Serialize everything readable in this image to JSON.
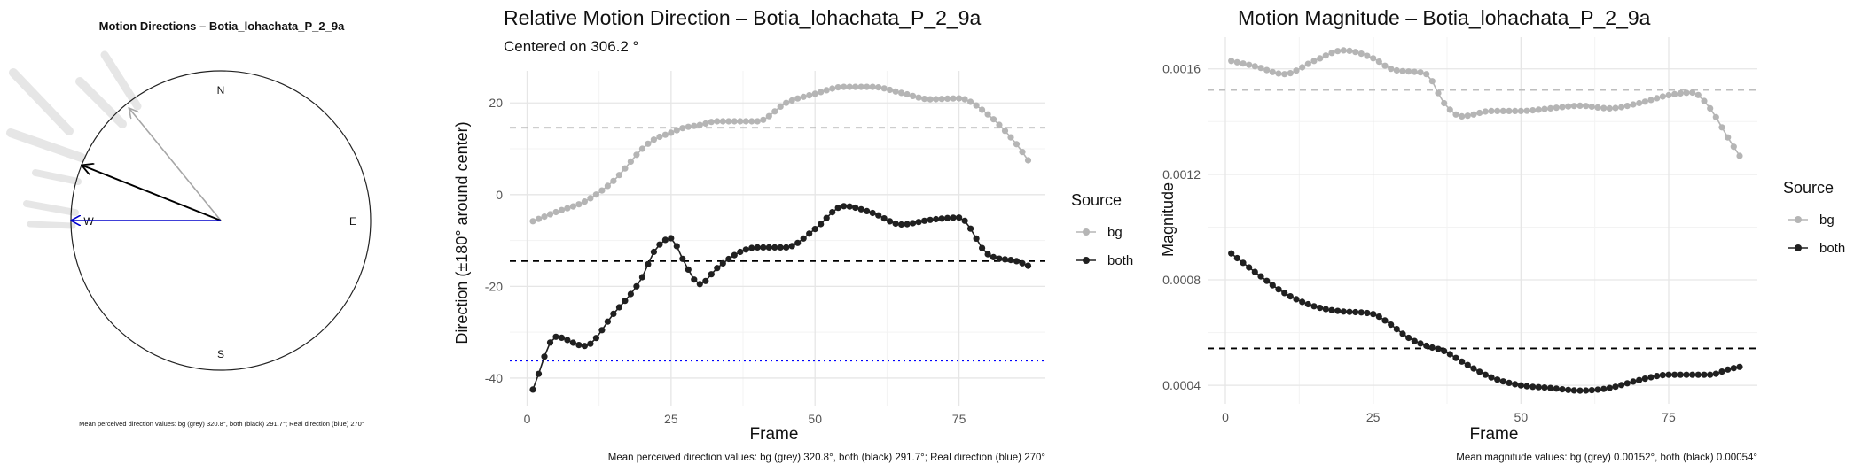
{
  "chart_data": [
    {
      "type": "compass",
      "title": "Motion Directions – Botia_lohachata_P_2_9a",
      "cardinals": {
        "north": "N",
        "east": "E",
        "south": "S",
        "west": "W"
      },
      "arrows": [
        {
          "label": "bg",
          "direction_deg": 320.8,
          "color": "#a6a6a6"
        },
        {
          "label": "both",
          "direction_deg": 291.7,
          "color": "#000000"
        },
        {
          "label": "real",
          "direction_deg": 270,
          "color": "#0000cc"
        }
      ],
      "caption": "Mean perceived direction values: bg (grey) 320.8°, both (black) 291.7°; Real direction (blue) 270°"
    },
    {
      "type": "line",
      "title": "Relative Motion Direction – Botia_lohachata_P_2_9a",
      "subtitle": "Centered on  306.2 °",
      "xlabel": "Frame",
      "ylabel": "Direction (±180° around center)",
      "xlim": [
        -3,
        90
      ],
      "ylim": [
        -46,
        27
      ],
      "xticks": [
        0,
        25,
        50,
        75
      ],
      "yticks": [
        -40,
        -20,
        0,
        20
      ],
      "grid": true,
      "legend_title": "Source",
      "legend_position": "right",
      "reference_lines": [
        {
          "value": 14.6,
          "color": "#bdbdbd",
          "style": "dashed"
        },
        {
          "value": -14.5,
          "color": "#000000",
          "style": "dashed"
        },
        {
          "value": -36.2,
          "color": "#0000ff",
          "style": "dotted"
        }
      ],
      "x_knots": [
        1,
        5,
        10,
        15,
        20,
        22,
        25,
        27,
        30,
        33,
        37,
        40,
        45,
        50,
        55,
        60,
        65,
        70,
        75,
        80,
        85,
        87
      ],
      "series": [
        {
          "name": "bg",
          "color": "#b5b5b5",
          "y_knots": [
            -5.8,
            -3.8,
            -1.5,
            3,
            10,
            12,
            13.5,
            14.5,
            15.2,
            16,
            16,
            16,
            20,
            22,
            23.5,
            23.5,
            22.2,
            20.8,
            21,
            17.5,
            11,
            7.5
          ]
        },
        {
          "name": "both",
          "color": "#202020",
          "y_knots": [
            -42.5,
            -31,
            -33,
            -26,
            -18,
            -12.5,
            -9.5,
            -14,
            -19.5,
            -16,
            -12.5,
            -11.5,
            -11.5,
            -7.5,
            -2.5,
            -4,
            -6.5,
            -5.5,
            -5,
            -13,
            -14.5,
            -15.5
          ]
        }
      ],
      "caption": "Mean perceived direction values: bg (grey) 320.8°, both (black) 291.7°; Real direction (blue) 270°"
    },
    {
      "type": "line",
      "title": "Motion Magnitude – Botia_lohachata_P_2_9a",
      "xlabel": "Frame",
      "ylabel": "Magnitude",
      "xlim": [
        -3,
        90
      ],
      "ylim": [
        0.00033,
        0.00172
      ],
      "xticks": [
        0,
        25,
        50,
        75
      ],
      "yticks": [
        0.0004,
        0.0008,
        0.0012,
        0.0016
      ],
      "grid": true,
      "legend_title": "Source",
      "legend_position": "right",
      "reference_lines": [
        {
          "value": 0.00152,
          "color": "#bdbdbd",
          "style": "dashed"
        },
        {
          "value": 0.00054,
          "color": "#000000",
          "style": "dashed"
        }
      ],
      "x_knots": [
        1,
        5,
        10,
        15,
        20,
        25,
        28,
        31,
        34,
        37,
        40,
        45,
        50,
        55,
        60,
        65,
        70,
        75,
        79,
        82,
        85,
        87
      ],
      "series": [
        {
          "name": "bg",
          "color": "#b5b5b5",
          "y_knots": [
            0.00163,
            0.00161,
            0.00158,
            0.00163,
            0.00167,
            0.00164,
            0.0016,
            0.00159,
            0.00158,
            0.00147,
            0.00142,
            0.00144,
            0.00144,
            0.00145,
            0.00146,
            0.00145,
            0.00147,
            0.0015,
            0.00151,
            0.00145,
            0.00134,
            0.00127
          ]
        },
        {
          "name": "both",
          "color": "#202020",
          "y_knots": [
            0.0009,
            0.00083,
            0.00075,
            0.0007,
            0.00068,
            0.00067,
            0.00063,
            0.00058,
            0.00055,
            0.00053,
            0.00049,
            0.00043,
            0.0004,
            0.00039,
            0.00038,
            0.00039,
            0.00042,
            0.00044,
            0.00044,
            0.00044,
            0.00046,
            0.00047
          ]
        }
      ],
      "caption": "Mean magnitude values: bg (grey) 0.00152°, both (black) 0.00054°"
    }
  ]
}
